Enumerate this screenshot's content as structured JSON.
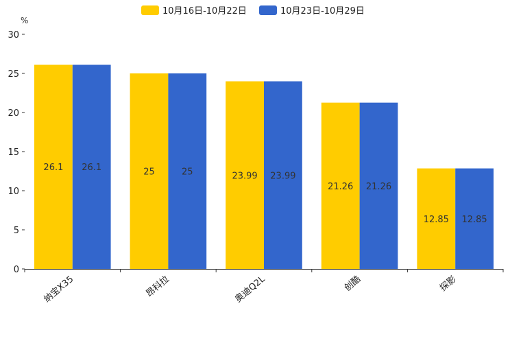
{
  "chart_data": {
    "type": "bar",
    "title": "",
    "xlabel": "",
    "ylabel": "%",
    "ylim": [
      0,
      30
    ],
    "yticks": [
      0,
      5,
      10,
      15,
      20,
      25,
      30
    ],
    "grid": false,
    "legend_position": "top-center",
    "categories": [
      "纳宝X35",
      "昂科拉",
      "奥迪Q2L",
      "创酷",
      "探影"
    ],
    "series": [
      {
        "name": "10月16日-10月22日",
        "color": "#FFCC00",
        "values": [
          26.1,
          25,
          23.99,
          21.26,
          12.85
        ],
        "labels": [
          "26.1",
          "25",
          "23.99",
          "21.26",
          "12.85"
        ]
      },
      {
        "name": "10月23日-10月29日",
        "color": "#3366CC",
        "values": [
          26.1,
          25,
          23.99,
          21.26,
          12.85
        ],
        "labels": [
          "26.1",
          "25",
          "23.99",
          "21.26",
          "12.85"
        ]
      }
    ]
  }
}
